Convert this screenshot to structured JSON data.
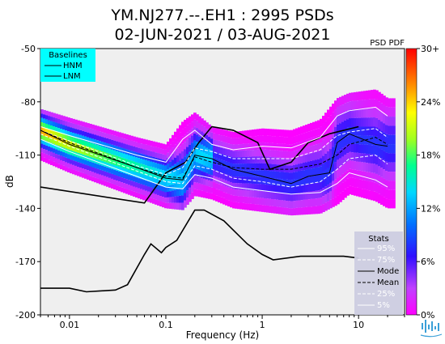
{
  "chart_data": {
    "type": "heatmap",
    "title_line1": "YM.NJ277.--.EH1 : 2995 PSDs",
    "title_line2": "02-JUN-2021 / 03-AUG-2021",
    "xlabel": "Frequency (Hz)",
    "ylabel": "dB",
    "x_scale": "log",
    "xlim": [
      0.005,
      30
    ],
    "ylim": [
      -200,
      -50
    ],
    "x_ticks": [
      {
        "value": 0.01,
        "label": "0.01"
      },
      {
        "value": 0.1,
        "label": "0.1"
      },
      {
        "value": 1,
        "label": "1"
      },
      {
        "value": 10,
        "label": "10"
      }
    ],
    "y_ticks": [
      {
        "value": -50,
        "label": "-50"
      },
      {
        "value": -80,
        "label": "-80"
      },
      {
        "value": -110,
        "label": "-110"
      },
      {
        "value": -140,
        "label": "-140"
      },
      {
        "value": -170,
        "label": "-170"
      },
      {
        "value": -200,
        "label": "-200"
      }
    ],
    "colorbar": {
      "label": "PSD PDF",
      "range": [
        0,
        30
      ],
      "unit": "%",
      "ticks": [
        "30+",
        "24%",
        "18%",
        "12%",
        "6%",
        "0%"
      ]
    },
    "baselines_legend": {
      "title": "Baselines",
      "entries": [
        "HNM",
        "LNM"
      ],
      "placement": "top-left",
      "color": "#00ffff"
    },
    "stats_legend": {
      "title": "Stats",
      "entries": [
        "95%",
        "75%",
        "Mode",
        "Mean",
        "25%",
        "5%"
      ],
      "placement": "bottom-right"
    },
    "series": [
      {
        "name": "HNM",
        "color": "#000000",
        "x": [
          0.005,
          0.06,
          0.1,
          0.16,
          0.22,
          0.3,
          0.5,
          0.9,
          1.2,
          2.0,
          3.0,
          5.0,
          10.0
        ],
        "y": [
          -128,
          -137,
          -120,
          -114,
          -103,
          -94,
          -96,
          -103,
          -118,
          -114,
          -103,
          -98,
          -94
        ]
      },
      {
        "name": "LNM",
        "color": "#000000",
        "x": [
          0.005,
          0.01,
          0.015,
          0.03,
          0.04,
          0.06,
          0.07,
          0.09,
          0.1,
          0.13,
          0.2,
          0.25,
          0.4,
          0.7,
          1.0,
          1.3,
          2.5,
          5.0,
          7.0,
          10.0
        ],
        "y": [
          -185,
          -185,
          -187,
          -186,
          -183,
          -166,
          -160,
          -165,
          -162,
          -158,
          -141,
          -141,
          -147,
          -160,
          -166,
          -169,
          -167,
          -167,
          -167,
          -168
        ]
      },
      {
        "name": "95%",
        "style": "white-solid",
        "x": [
          0.005,
          0.01,
          0.05,
          0.1,
          0.15,
          0.2,
          0.3,
          0.5,
          1.0,
          2.0,
          4.0,
          6.0,
          8.0,
          15.0,
          20.0
        ],
        "y": [
          -94,
          -99,
          -110,
          -114,
          -101,
          -96,
          -104,
          -107,
          -105,
          -106,
          -100,
          -88,
          -85,
          -83,
          -88
        ]
      },
      {
        "name": "75%",
        "style": "white-dashed",
        "x": [
          0.005,
          0.01,
          0.05,
          0.1,
          0.15,
          0.2,
          0.3,
          0.5,
          1.0,
          2.0,
          4.0,
          6.0,
          8.0,
          15.0,
          20.0
        ],
        "y": [
          -96,
          -102,
          -116,
          -121,
          -117,
          -106,
          -108,
          -112,
          -112,
          -112,
          -107,
          -99,
          -97,
          -95,
          -100
        ]
      },
      {
        "name": "Mode",
        "style": "black-solid",
        "x": [
          0.005,
          0.01,
          0.05,
          0.1,
          0.15,
          0.2,
          0.3,
          0.5,
          1.0,
          2.0,
          3.0,
          5.0,
          6.0,
          8.0,
          15.0,
          20.0
        ],
        "y": [
          -96,
          -104,
          -117,
          -123,
          -124,
          -110,
          -112,
          -118,
          -122,
          -126,
          -122,
          -120,
          -103,
          -98,
          -104,
          -105
        ]
      },
      {
        "name": "Mean",
        "style": "black-dashed",
        "x": [
          0.005,
          0.01,
          0.05,
          0.1,
          0.15,
          0.2,
          0.3,
          0.5,
          1.0,
          2.0,
          4.0,
          6.0,
          8.0,
          15.0,
          20.0
        ],
        "y": [
          -96,
          -103,
          -117,
          -122,
          -123,
          -111,
          -114,
          -117,
          -118,
          -118,
          -115,
          -110,
          -104,
          -100,
          -104
        ]
      },
      {
        "name": "25%",
        "style": "white-dashed",
        "x": [
          0.005,
          0.01,
          0.05,
          0.1,
          0.15,
          0.2,
          0.3,
          0.5,
          1.0,
          2.0,
          4.0,
          6.0,
          8.0,
          15.0,
          20.0
        ],
        "y": [
          -98,
          -105,
          -119,
          -125,
          -126,
          -116,
          -118,
          -123,
          -125,
          -128,
          -125,
          -118,
          -112,
          -110,
          -115
        ]
      },
      {
        "name": "5%",
        "style": "white-solid",
        "x": [
          0.005,
          0.01,
          0.05,
          0.1,
          0.15,
          0.2,
          0.3,
          0.5,
          1.0,
          2.0,
          4.0,
          6.0,
          8.0,
          15.0,
          20.0
        ],
        "y": [
          -101,
          -108,
          -122,
          -128,
          -129,
          -121,
          -123,
          -128,
          -130,
          -132,
          -131,
          -126,
          -120,
          -124,
          -128
        ]
      }
    ]
  }
}
